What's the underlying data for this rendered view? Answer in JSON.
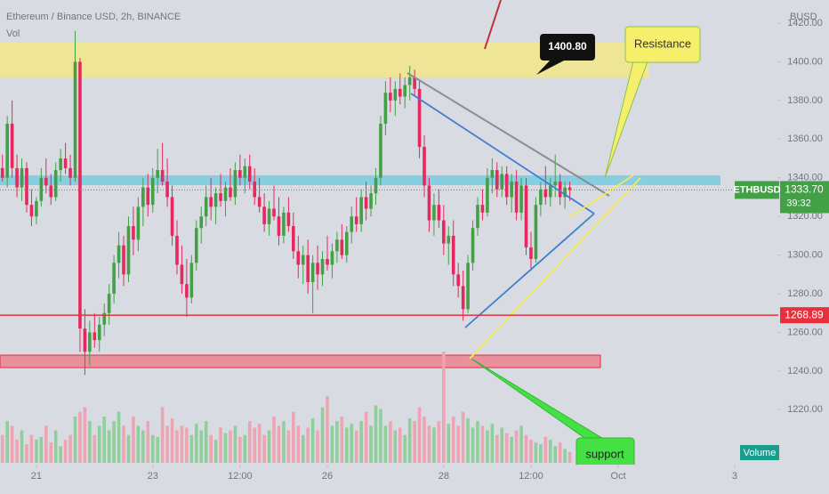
{
  "chart_data": {
    "type": "candlestick",
    "title": "Ethereum / Binance USD, 2h, BINANCE",
    "volume_label": "Vol",
    "currency": "BUSD",
    "symbol": "ETHBUSD",
    "colors": {
      "up": "#43a047",
      "down": "#e5285f",
      "up_volume": "#8fcf9a",
      "down_volume": "#eea4b3"
    },
    "ylim": [
      1210,
      1432
    ],
    "yticks": [
      {
        "value": 1220,
        "label": "1220.00"
      },
      {
        "value": 1240,
        "label": "1240.00"
      },
      {
        "value": 1260,
        "label": "1260.00"
      },
      {
        "value": 1280,
        "label": "1280.00"
      },
      {
        "value": 1300,
        "label": "1300.00"
      },
      {
        "value": 1320,
        "label": "1320.00"
      },
      {
        "value": 1340,
        "label": "1340.00"
      },
      {
        "value": 1360,
        "label": "1360.00"
      },
      {
        "value": 1380,
        "label": "1380.00"
      },
      {
        "value": 1400,
        "label": "1400.00"
      },
      {
        "value": 1420,
        "label": "1420.00"
      }
    ],
    "xlim": [
      -0.5,
      160
    ],
    "xticks": [
      {
        "value": 7,
        "label": "21"
      },
      {
        "value": 31,
        "label": "23"
      },
      {
        "value": 49,
        "label": "12:00"
      },
      {
        "value": 67,
        "label": "26"
      },
      {
        "value": 91,
        "label": "28"
      },
      {
        "value": 109,
        "label": "12:00"
      },
      {
        "value": 127,
        "label": "Oct"
      },
      {
        "value": 151,
        "label": "3"
      }
    ],
    "candles": [
      [
        1345,
        1352,
        1338,
        1340
      ],
      [
        1340,
        1372,
        1335,
        1368
      ],
      [
        1368,
        1380,
        1340,
        1345
      ],
      [
        1345,
        1352,
        1330,
        1335
      ],
      [
        1335,
        1350,
        1328,
        1345
      ],
      [
        1345,
        1348,
        1322,
        1326
      ],
      [
        1326,
        1334,
        1315,
        1320
      ],
      [
        1320,
        1330,
        1316,
        1328
      ],
      [
        1328,
        1345,
        1325,
        1340
      ],
      [
        1340,
        1350,
        1332,
        1336
      ],
      [
        1336,
        1342,
        1326,
        1330
      ],
      [
        1330,
        1348,
        1328,
        1344
      ],
      [
        1344,
        1355,
        1338,
        1350
      ],
      [
        1350,
        1358,
        1342,
        1345
      ],
      [
        1345,
        1352,
        1336,
        1340
      ],
      [
        1340,
        1416,
        1338,
        1400
      ],
      [
        1400,
        1402,
        1250,
        1262
      ],
      [
        1262,
        1272,
        1238,
        1250
      ],
      [
        1250,
        1266,
        1243,
        1260
      ],
      [
        1260,
        1270,
        1252,
        1256
      ],
      [
        1256,
        1268,
        1250,
        1264
      ],
      [
        1264,
        1275,
        1258,
        1270
      ],
      [
        1270,
        1285,
        1264,
        1280
      ],
      [
        1280,
        1300,
        1275,
        1296
      ],
      [
        1296,
        1312,
        1288,
        1305
      ],
      [
        1305,
        1310,
        1284,
        1290
      ],
      [
        1290,
        1320,
        1286,
        1315
      ],
      [
        1315,
        1325,
        1300,
        1308
      ],
      [
        1308,
        1330,
        1302,
        1325
      ],
      [
        1325,
        1340,
        1315,
        1335
      ],
      [
        1335,
        1342,
        1320,
        1326
      ],
      [
        1326,
        1345,
        1322,
        1340
      ],
      [
        1340,
        1355,
        1332,
        1344
      ],
      [
        1344,
        1358,
        1336,
        1338
      ],
      [
        1338,
        1350,
        1325,
        1330
      ],
      [
        1330,
        1336,
        1305,
        1310
      ],
      [
        1310,
        1318,
        1290,
        1295
      ],
      [
        1295,
        1305,
        1280,
        1285
      ],
      [
        1285,
        1298,
        1268,
        1278
      ],
      [
        1278,
        1300,
        1275,
        1296
      ],
      [
        1296,
        1318,
        1292,
        1314
      ],
      [
        1314,
        1325,
        1306,
        1320
      ],
      [
        1320,
        1336,
        1315,
        1330
      ],
      [
        1330,
        1340,
        1318,
        1325
      ],
      [
        1325,
        1335,
        1316,
        1332
      ],
      [
        1332,
        1342,
        1325,
        1328
      ],
      [
        1328,
        1338,
        1320,
        1335
      ],
      [
        1335,
        1345,
        1328,
        1330
      ],
      [
        1330,
        1348,
        1326,
        1344
      ],
      [
        1344,
        1352,
        1336,
        1340
      ],
      [
        1340,
        1350,
        1332,
        1346
      ],
      [
        1346,
        1352,
        1334,
        1338
      ],
      [
        1338,
        1345,
        1326,
        1330
      ],
      [
        1330,
        1340,
        1322,
        1325
      ],
      [
        1325,
        1332,
        1312,
        1316
      ],
      [
        1316,
        1328,
        1310,
        1324
      ],
      [
        1324,
        1336,
        1318,
        1320
      ],
      [
        1320,
        1330,
        1305,
        1310
      ],
      [
        1310,
        1325,
        1306,
        1322
      ],
      [
        1322,
        1330,
        1312,
        1315
      ],
      [
        1315,
        1322,
        1298,
        1302
      ],
      [
        1302,
        1310,
        1288,
        1295
      ],
      [
        1295,
        1305,
        1285,
        1300
      ],
      [
        1300,
        1308,
        1280,
        1286
      ],
      [
        1286,
        1300,
        1270,
        1296
      ],
      [
        1296,
        1305,
        1282,
        1290
      ],
      [
        1290,
        1302,
        1284,
        1298
      ],
      [
        1298,
        1310,
        1292,
        1295
      ],
      [
        1295,
        1306,
        1288,
        1302
      ],
      [
        1302,
        1312,
        1296,
        1308
      ],
      [
        1308,
        1316,
        1298,
        1300
      ],
      [
        1300,
        1315,
        1296,
        1312
      ],
      [
        1312,
        1325,
        1306,
        1320
      ],
      [
        1320,
        1330,
        1312,
        1316
      ],
      [
        1316,
        1334,
        1312,
        1330
      ],
      [
        1330,
        1338,
        1318,
        1324
      ],
      [
        1324,
        1336,
        1320,
        1332
      ],
      [
        1332,
        1345,
        1326,
        1340
      ],
      [
        1340,
        1372,
        1336,
        1368
      ],
      [
        1368,
        1390,
        1362,
        1384
      ],
      [
        1384,
        1392,
        1374,
        1380
      ],
      [
        1380,
        1390,
        1372,
        1386
      ],
      [
        1386,
        1394,
        1378,
        1382
      ],
      [
        1382,
        1392,
        1376,
        1388
      ],
      [
        1388,
        1398,
        1380,
        1392
      ],
      [
        1392,
        1396,
        1382,
        1386
      ],
      [
        1386,
        1390,
        1350,
        1356
      ],
      [
        1356,
        1362,
        1330,
        1336
      ],
      [
        1336,
        1340,
        1312,
        1318
      ],
      [
        1318,
        1332,
        1310,
        1326
      ],
      [
        1326,
        1334,
        1314,
        1318
      ],
      [
        1318,
        1326,
        1300,
        1306
      ],
      [
        1306,
        1315,
        1295,
        1310
      ],
      [
        1310,
        1318,
        1284,
        1290
      ],
      [
        1290,
        1296,
        1278,
        1284
      ],
      [
        1284,
        1292,
        1266,
        1272
      ],
      [
        1272,
        1300,
        1270,
        1296
      ],
      [
        1296,
        1318,
        1292,
        1314
      ],
      [
        1314,
        1330,
        1310,
        1326
      ],
      [
        1326,
        1334,
        1318,
        1322
      ],
      [
        1322,
        1345,
        1320,
        1340
      ],
      [
        1340,
        1350,
        1332,
        1344
      ],
      [
        1344,
        1348,
        1330,
        1334
      ],
      [
        1334,
        1346,
        1330,
        1342
      ],
      [
        1342,
        1346,
        1326,
        1330
      ],
      [
        1330,
        1342,
        1322,
        1338
      ],
      [
        1338,
        1344,
        1318,
        1322
      ],
      [
        1322,
        1340,
        1318,
        1336
      ],
      [
        1336,
        1340,
        1300,
        1304
      ],
      [
        1304,
        1312,
        1292,
        1298
      ],
      [
        1298,
        1330,
        1296,
        1326
      ],
      [
        1326,
        1338,
        1320,
        1334
      ],
      [
        1334,
        1346,
        1326,
        1330
      ],
      [
        1330,
        1340,
        1325,
        1336
      ],
      [
        1336,
        1352,
        1330,
        1338
      ],
      [
        1338,
        1342,
        1326,
        1330
      ],
      [
        1330,
        1338,
        1324,
        1335
      ],
      [
        1335,
        1338,
        1328,
        1333.7
      ]
    ],
    "volume": [
      30,
      45,
      40,
      25,
      35,
      20,
      30,
      25,
      28,
      40,
      22,
      35,
      18,
      25,
      30,
      50,
      55,
      60,
      45,
      30,
      40,
      50,
      35,
      45,
      55,
      40,
      30,
      50,
      40,
      35,
      45,
      30,
      28,
      60,
      40,
      48,
      35,
      40,
      38,
      30,
      42,
      35,
      45,
      30,
      25,
      38,
      32,
      35,
      40,
      28,
      30,
      45,
      38,
      42,
      30,
      35,
      50,
      40,
      45,
      35,
      55,
      40,
      30,
      38,
      48,
      35,
      60,
      72,
      40,
      45,
      50,
      38,
      42,
      35,
      45,
      55,
      40,
      62,
      58,
      40,
      45,
      35,
      38,
      30,
      48,
      45,
      60,
      50,
      40,
      38,
      45,
      120,
      42,
      50,
      40,
      55,
      48,
      38,
      45,
      40,
      35,
      42,
      30,
      38,
      32,
      28,
      35,
      40,
      30,
      25,
      22,
      20,
      28,
      25,
      18,
      22,
      15,
      12
    ],
    "last_price": {
      "value": 1333.7,
      "label": "1333.70"
    },
    "countdown": "39:32",
    "level": 1268.89,
    "annotations": {
      "price_note": "1400.80",
      "resistance": "Resistance",
      "support": "support",
      "volume_badge": "Volume"
    }
  }
}
